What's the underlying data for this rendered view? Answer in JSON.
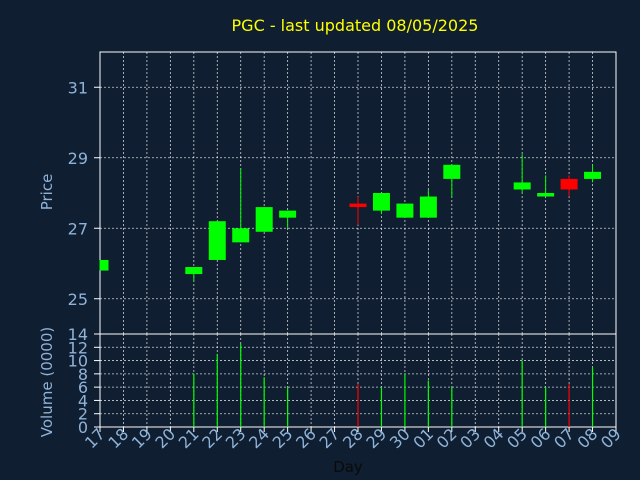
{
  "chart_data": [
    {
      "type": "candlestick",
      "title": "PGC - last updated 08/05/2025",
      "ylabel": "Price",
      "ylim": [
        24,
        32
      ],
      "yticks": [
        "31",
        "29",
        "27",
        "25"
      ],
      "ytick_values": [
        31,
        29,
        27,
        25
      ],
      "grid": true,
      "up_color": "#00ff00",
      "down_color": "#ff0000",
      "candles": [
        {
          "day": "17",
          "open": 25.8,
          "high": 26.1,
          "low": 25.8,
          "close": 26.1
        },
        {
          "day": "21",
          "open": 25.7,
          "high": 25.9,
          "low": 25.5,
          "close": 25.9
        },
        {
          "day": "22",
          "open": 26.1,
          "high": 27.2,
          "low": 26.1,
          "close": 27.2
        },
        {
          "day": "23",
          "open": 26.6,
          "high": 28.7,
          "low": 26.6,
          "close": 27.0
        },
        {
          "day": "24",
          "open": 26.9,
          "high": 27.6,
          "low": 26.9,
          "close": 27.6
        },
        {
          "day": "25",
          "open": 27.3,
          "high": 27.5,
          "low": 27.0,
          "close": 27.5
        },
        {
          "day": "28",
          "open": 27.7,
          "high": 27.9,
          "low": 27.1,
          "close": 27.6
        },
        {
          "day": "29",
          "open": 27.5,
          "high": 28.0,
          "low": 27.4,
          "close": 28.0
        },
        {
          "day": "30",
          "open": 27.3,
          "high": 27.7,
          "low": 27.3,
          "close": 27.7
        },
        {
          "day": "01",
          "open": 27.3,
          "high": 28.1,
          "low": 27.3,
          "close": 27.9
        },
        {
          "day": "02",
          "open": 28.4,
          "high": 28.8,
          "low": 27.9,
          "close": 28.8
        },
        {
          "day": "05",
          "open": 28.1,
          "high": 29.1,
          "low": 28.0,
          "close": 28.3
        },
        {
          "day": "06",
          "open": 27.9,
          "high": 28.5,
          "low": 27.9,
          "close": 28.0
        },
        {
          "day": "07",
          "open": 28.4,
          "high": 28.5,
          "low": 27.9,
          "close": 28.1
        },
        {
          "day": "08",
          "open": 28.4,
          "high": 28.8,
          "low": 28.3,
          "close": 28.6
        }
      ]
    },
    {
      "type": "bar",
      "xlabel": "Day",
      "ylabel": "Volume (0000)",
      "ylim": [
        0,
        14
      ],
      "yticks": [
        "14",
        "12",
        "10",
        "8",
        "6",
        "4",
        "2",
        "0"
      ],
      "ytick_values": [
        14,
        12,
        10,
        8,
        6,
        4,
        2,
        0
      ],
      "categories": [
        "17",
        "18",
        "19",
        "20",
        "21",
        "22",
        "23",
        "24",
        "25",
        "26",
        "27",
        "28",
        "29",
        "30",
        "01",
        "02",
        "03",
        "04",
        "05",
        "06",
        "07",
        "08",
        "09"
      ],
      "values": [
        0,
        0,
        0,
        0,
        8,
        11,
        12.5,
        7.5,
        6,
        0,
        0,
        6.5,
        6,
        8,
        7,
        6,
        0,
        0,
        10,
        6,
        6.5,
        9,
        0
      ],
      "colors": [
        "#00ff00",
        "#00ff00",
        "#00ff00",
        "#00ff00",
        "#00ff00",
        "#00ff00",
        "#00ff00",
        "#00ff00",
        "#00ff00",
        "#00ff00",
        "#00ff00",
        "#ff0000",
        "#00ff00",
        "#00ff00",
        "#00ff00",
        "#00ff00",
        "#00ff00",
        "#00ff00",
        "#00ff00",
        "#00ff00",
        "#ff0000",
        "#00ff00",
        "#00ff00"
      ]
    }
  ],
  "colors": {
    "background": "#0f1e30",
    "title": "#ffff00",
    "axis_text": "#8fb3d9",
    "frame": "#ffffff",
    "grid": "#ffffff"
  }
}
